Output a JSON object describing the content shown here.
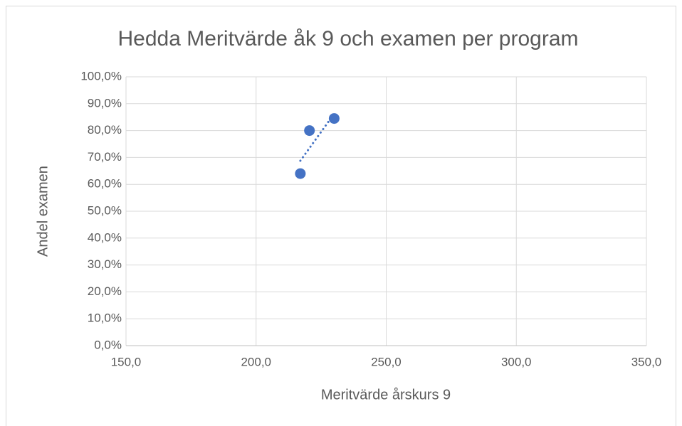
{
  "chart_data": {
    "type": "scatter",
    "title": "Hedda Meritvärde åk 9 och examen per program",
    "xlabel": "Meritvärde årskurs 9",
    "ylabel": "Andel examen",
    "series": [
      {
        "color": "#4472c4",
        "x": [
          217,
          220.5,
          230
        ],
        "values": [
          64.0,
          80.0,
          84.5
        ]
      }
    ],
    "trendline": "linear",
    "xlim": [
      150,
      350
    ],
    "xticks": [
      {
        "value": 150,
        "label": "150,0"
      },
      {
        "value": 200,
        "label": "200,0"
      },
      {
        "value": 250,
        "label": "250,0"
      },
      {
        "value": 300,
        "label": "300,0"
      },
      {
        "value": 350,
        "label": "350,0"
      }
    ],
    "ylim": [
      0,
      100
    ],
    "yticks": [
      {
        "value": 0,
        "label": "0,0%"
      },
      {
        "value": 10,
        "label": "10,0%"
      },
      {
        "value": 20,
        "label": "20,0%"
      },
      {
        "value": 30,
        "label": "30,0%"
      },
      {
        "value": 40,
        "label": "40,0%"
      },
      {
        "value": 50,
        "label": "50,0%"
      },
      {
        "value": 60,
        "label": "60,0%"
      },
      {
        "value": 70,
        "label": "70,0%"
      },
      {
        "value": 80,
        "label": "80,0%"
      },
      {
        "value": 90,
        "label": "90,0%"
      },
      {
        "value": 100,
        "label": "100,0%"
      }
    ],
    "grid": true
  }
}
